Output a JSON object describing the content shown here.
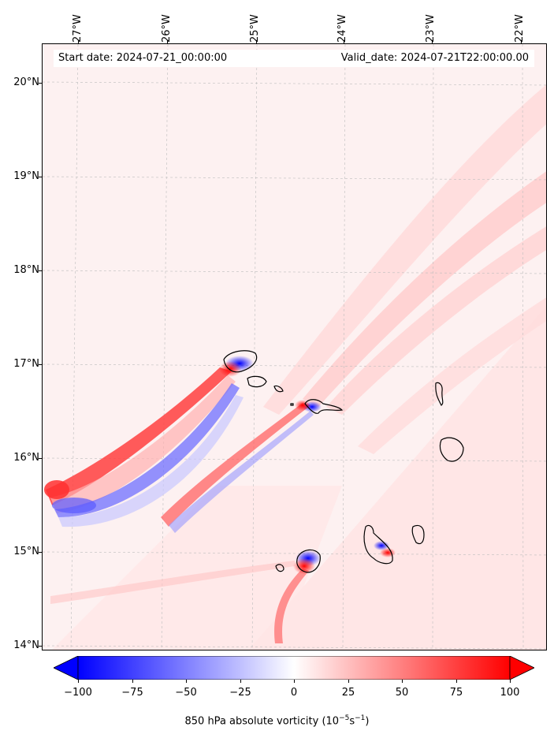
{
  "header": {
    "start_date": "Start date: 2024-07-21_00:00:00",
    "valid_date": "Valid_date: 2024-07-21T22:00:00.00"
  },
  "map": {
    "longitude_labels": [
      "27°W",
      "26°W",
      "25°W",
      "24°W",
      "23°W",
      "22°W"
    ],
    "latitude_labels": [
      "20°N",
      "19°N",
      "18°N",
      "17°N",
      "16°N",
      "15°N",
      "14°N"
    ],
    "gridlines": true
  },
  "colorbar": {
    "title_prefix": "850 hPa absolute vorticity (10",
    "title_exp1": "−5",
    "title_mid": "s",
    "title_exp2": "−1",
    "title_suffix": ")",
    "tick_labels": [
      "−100",
      "−75",
      "−50",
      "−25",
      "0",
      "25",
      "50",
      "75",
      "100"
    ],
    "min_color": "#0000ff",
    "mid_color": "#ffffff",
    "max_color": "#ff0000",
    "extend": "both"
  }
}
